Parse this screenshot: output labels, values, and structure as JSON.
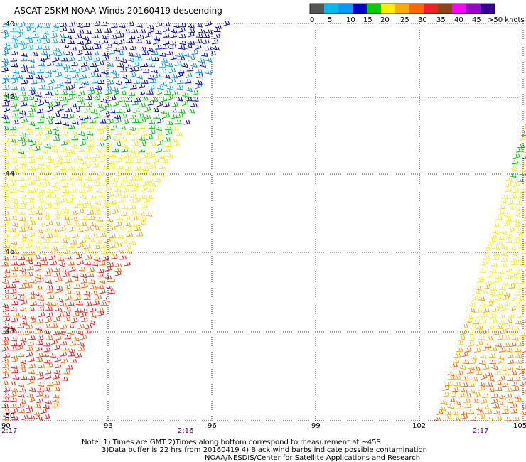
{
  "title": "ASCAT 25KM NOAA Winds 20160419 descending",
  "colorbar": {
    "colors": [
      "#555555",
      "#00bbee",
      "#0099ff",
      "#0000cc",
      "#00cc00",
      "#ffee00",
      "#ffaa00",
      "#ff6600",
      "#ee2222",
      "#8b4513",
      "#ff00ff",
      "#9900cc",
      "#330099"
    ],
    "labels": [
      "0",
      "5",
      "10",
      "15",
      "20",
      "25",
      "30",
      "35",
      "40",
      "45",
      ">50 knots"
    ]
  },
  "lat_labels": [
    "-40",
    "-42",
    "-44",
    "-46",
    "-48",
    "-50"
  ],
  "lon_labels": [
    "90",
    "93",
    "96",
    "99",
    "102",
    "105"
  ],
  "time_labels": [
    {
      "text": "2:17",
      "pos": "left"
    },
    {
      "text": "2:16",
      "pos": "center"
    },
    {
      "text": "2:17",
      "pos": "right"
    }
  ],
  "notes": [
    "Note: 1) Times are GMT 2)Times along bottom correspond to measurement at ~45S",
    "3)Data buffer is 22 hrs from 20160419 4) Black wind barbs indicate possible contamination",
    "NOAA/NESDIS/Center for Satellite Applications and Research"
  ]
}
